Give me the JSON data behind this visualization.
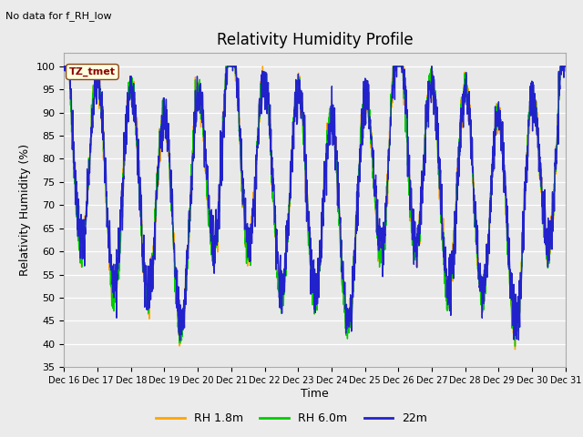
{
  "title": "Relativity Humidity Profile",
  "subtitle": "No data for f_RH_low",
  "xlabel": "Time",
  "ylabel": "Relativity Humidity (%)",
  "ylim": [
    35,
    103
  ],
  "yticks": [
    35,
    40,
    45,
    50,
    55,
    60,
    65,
    70,
    75,
    80,
    85,
    90,
    95,
    100
  ],
  "xtick_labels": [
    "Dec 16",
    "Dec 17",
    "Dec 18",
    "Dec 19",
    "Dec 20",
    "Dec 21",
    "Dec 22",
    "Dec 23",
    "Dec 24",
    "Dec 25",
    "Dec 26",
    "Dec 27",
    "Dec 28",
    "Dec 29",
    "Dec 30",
    "Dec 31"
  ],
  "color_rh18": "#FFA500",
  "color_rh60": "#00CC00",
  "color_22m": "#2222CC",
  "tz_label": "TZ_tmet",
  "bg_color": "#E8E8E8",
  "fig_bg_color": "#EBEBEB",
  "legend_labels": [
    "RH 1.8m",
    "RH 6.0m",
    "22m"
  ],
  "n_days": 15,
  "ppd": 144
}
